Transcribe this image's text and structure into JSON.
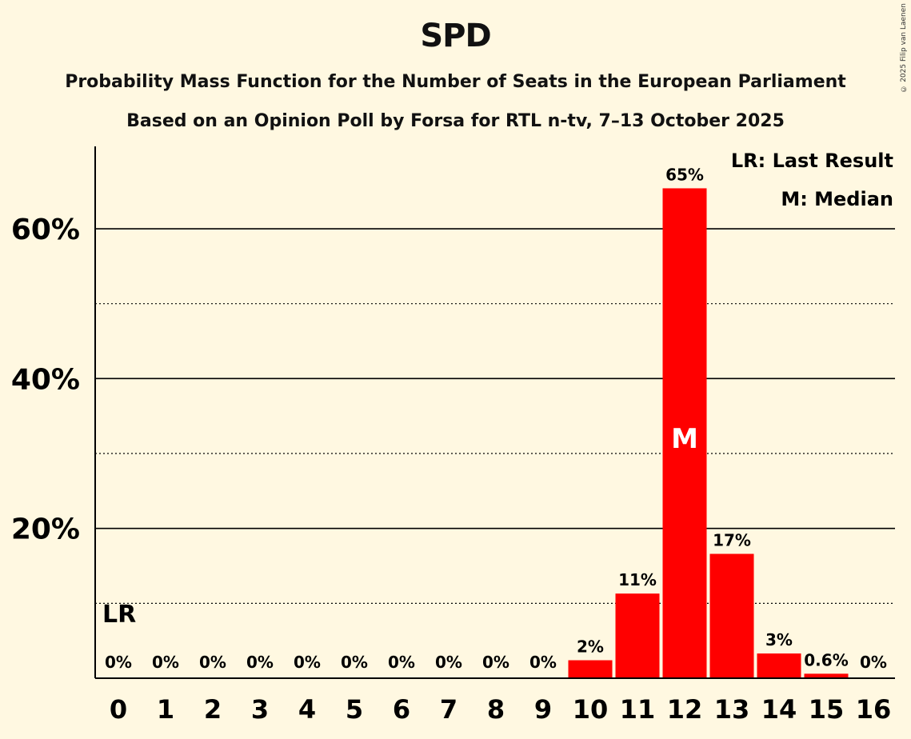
{
  "title": "SPD",
  "subtitle": "Probability Mass Function for the Number of Seats in the European Parliament",
  "subtitle2": "Based on an Opinion Poll by Forsa for RTL n-tv, 7–13 October 2025",
  "copyright": "© 2025 Filip van Laenen",
  "legend": {
    "lr": "LR: Last Result",
    "median": "M: Median"
  },
  "markers": {
    "lr_label": "LR",
    "lr_seat": 0,
    "median_label": "M",
    "median_seat": 12
  },
  "colors": {
    "bar": "#ff0000",
    "background": "#fff8e1",
    "median_text": "#ffffff"
  },
  "chart_data": {
    "type": "bar",
    "categories": [
      "0",
      "1",
      "2",
      "3",
      "4",
      "5",
      "6",
      "7",
      "8",
      "9",
      "10",
      "11",
      "12",
      "13",
      "14",
      "15",
      "16"
    ],
    "values": [
      0,
      0,
      0,
      0,
      0,
      0,
      0,
      0,
      0,
      0,
      2.4,
      11.3,
      65.4,
      16.6,
      3.3,
      0.6,
      0
    ],
    "value_labels": [
      "0%",
      "0%",
      "0%",
      "0%",
      "0%",
      "0%",
      "0%",
      "0%",
      "0%",
      "0%",
      "2%",
      "11%",
      "65%",
      "17%",
      "3%",
      "0.6%",
      "0%"
    ],
    "ylim": [
      0,
      71
    ],
    "y_ticks": [
      20,
      40,
      60
    ],
    "y_tick_labels": [
      "20%",
      "40%",
      "60%"
    ],
    "y_minor_ticks": [
      10,
      30,
      50
    ],
    "grid": true,
    "legend_position": "top-right"
  }
}
